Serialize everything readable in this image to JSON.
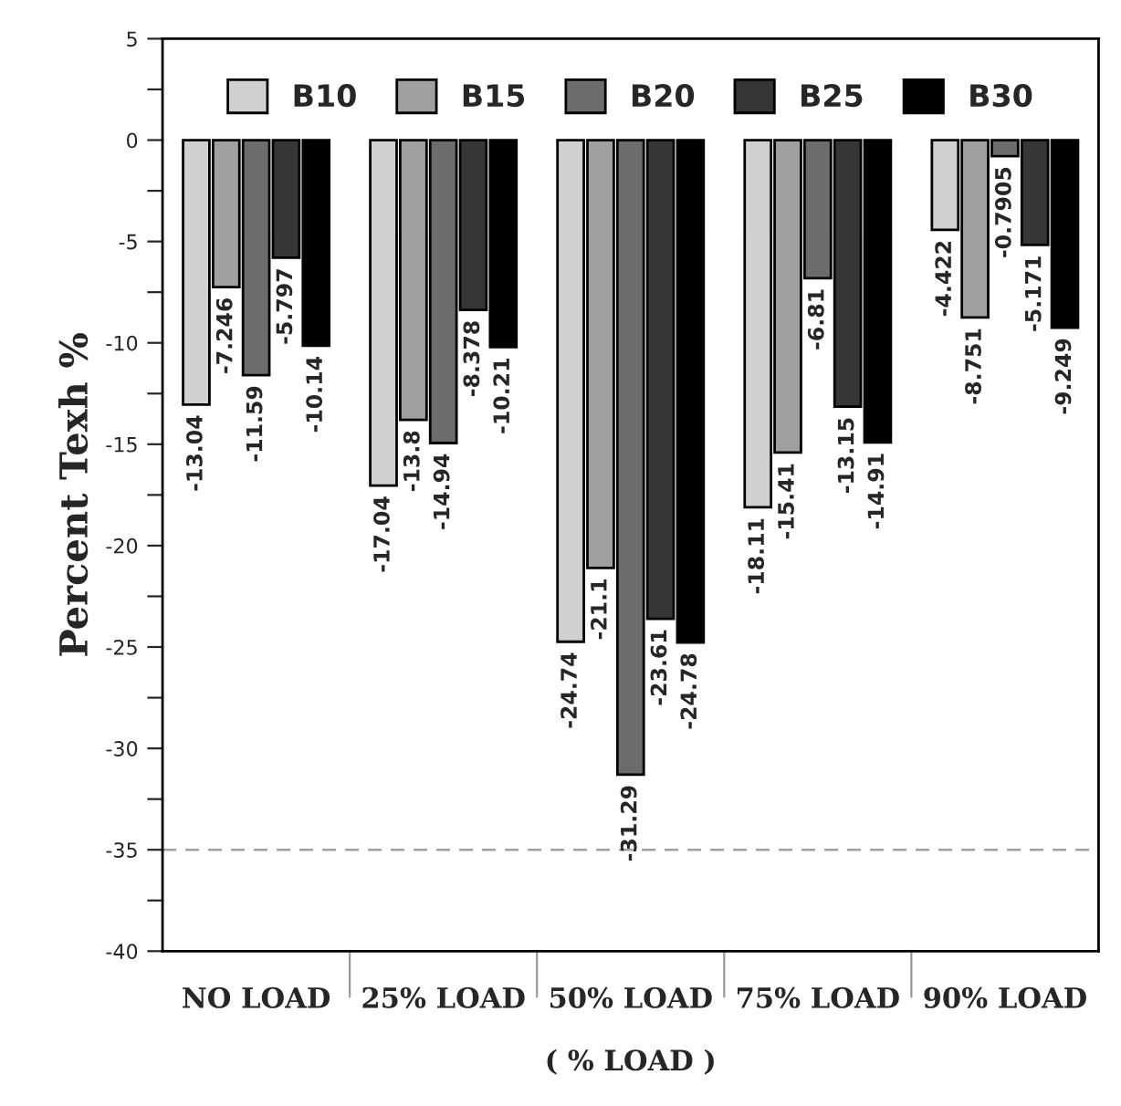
{
  "chart_data": {
    "type": "bar",
    "ylabel": "Percent Texh %",
    "xlabel": "( % LOAD )",
    "categories": [
      "NO LOAD",
      "25% LOAD",
      "50% LOAD",
      "75% LOAD",
      "90% LOAD"
    ],
    "series": [
      {
        "name": "B10",
        "color": "#d0d0d0",
        "values": [
          -13.04,
          -17.04,
          -24.74,
          -18.11,
          -4.422
        ]
      },
      {
        "name": "B15",
        "color": "#a0a0a0",
        "values": [
          -7.246,
          -13.8,
          -21.1,
          -15.41,
          -8.751
        ]
      },
      {
        "name": "B20",
        "color": "#6c6c6c",
        "values": [
          -11.59,
          -14.94,
          -31.29,
          -6.81,
          -0.7905
        ]
      },
      {
        "name": "B25",
        "color": "#363636",
        "values": [
          -5.797,
          -8.378,
          -23.61,
          -13.15,
          -5.171
        ]
      },
      {
        "name": "B30",
        "color": "#000000",
        "values": [
          -10.14,
          -10.21,
          -24.78,
          -14.91,
          -9.249
        ]
      }
    ],
    "data_labels": true,
    "ylim": [
      -40,
      5
    ],
    "yticks": [
      -40,
      {
        "value": -37.5,
        "label": null
      },
      -35,
      {
        "value": -32.5,
        "label": null
      },
      -30,
      {
        "value": -27.5,
        "label": null
      },
      -25,
      {
        "value": -22.5,
        "label": null
      },
      -20,
      {
        "value": -17.5,
        "label": null
      },
      -15,
      {
        "value": -12.5,
        "label": null
      },
      -10,
      {
        "value": -7.5,
        "label": null
      },
      -5,
      {
        "value": -2.5,
        "label": null
      },
      0,
      {
        "value": 2.5,
        "label": null
      },
      5
    ],
    "ref_lines": [
      {
        "axis": "y",
        "value": -35,
        "color": "#a0a0a0",
        "line_style": "dashed"
      }
    ],
    "legend": "top",
    "grid": false
  }
}
